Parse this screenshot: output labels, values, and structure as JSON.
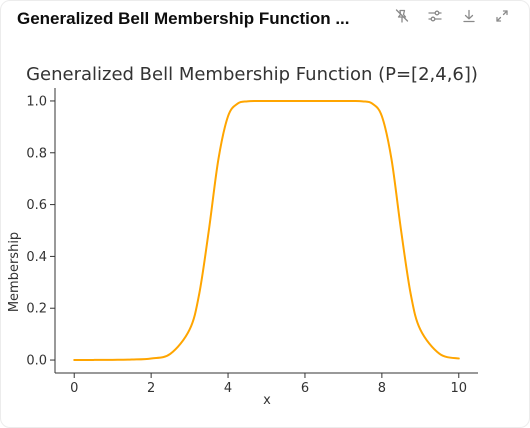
{
  "card": {
    "title": "Generalized Bell Membership Function ..."
  },
  "toolbar": {
    "icons": [
      "unpin-icon",
      "settings-sliders-icon",
      "download-icon",
      "expand-icon"
    ],
    "icon_color": "#8a8a8a"
  },
  "chart_data": {
    "type": "line",
    "title": "Generalized Bell Membership Function (P=[2,4,6])",
    "xlabel": "x",
    "ylabel": "Membership",
    "xlim": [
      -0.5,
      10.5
    ],
    "ylim": [
      -0.05,
      1.05
    ],
    "xticks": [
      0,
      2,
      4,
      6,
      8,
      10
    ],
    "yticks": [
      0.0,
      0.2,
      0.4,
      0.6,
      0.8,
      1.0
    ],
    "xtick_labels": [
      "0",
      "2",
      "4",
      "6",
      "8",
      "10"
    ],
    "ytick_labels": [
      "0.0",
      "0.2",
      "0.4",
      "0.6",
      "0.8",
      "1.0"
    ],
    "grid": false,
    "line_color": "#ffa500",
    "series": [
      {
        "x": [
          0,
          0.5,
          1,
          1.5,
          2,
          2.5,
          3,
          3.25,
          3.5,
          3.75,
          4,
          4.25,
          4.5,
          4.75,
          5,
          5.5,
          6,
          6.5,
          7,
          7.25,
          7.5,
          7.75,
          8,
          8.25,
          8.5,
          8.75,
          9,
          9.5,
          10
        ],
        "values": [
          0.0002,
          0.0004,
          0.0008,
          0.0019,
          0.0061,
          0.0239,
          0.1176,
          0.2549,
          0.5,
          0.7757,
          0.9412,
          0.9899,
          0.9985,
          0.9999,
          1.0,
          1.0,
          1.0,
          1.0,
          1.0,
          0.9999,
          0.9985,
          0.9899,
          0.9412,
          0.7757,
          0.5,
          0.2549,
          0.1176,
          0.0239,
          0.0061
        ]
      }
    ]
  }
}
